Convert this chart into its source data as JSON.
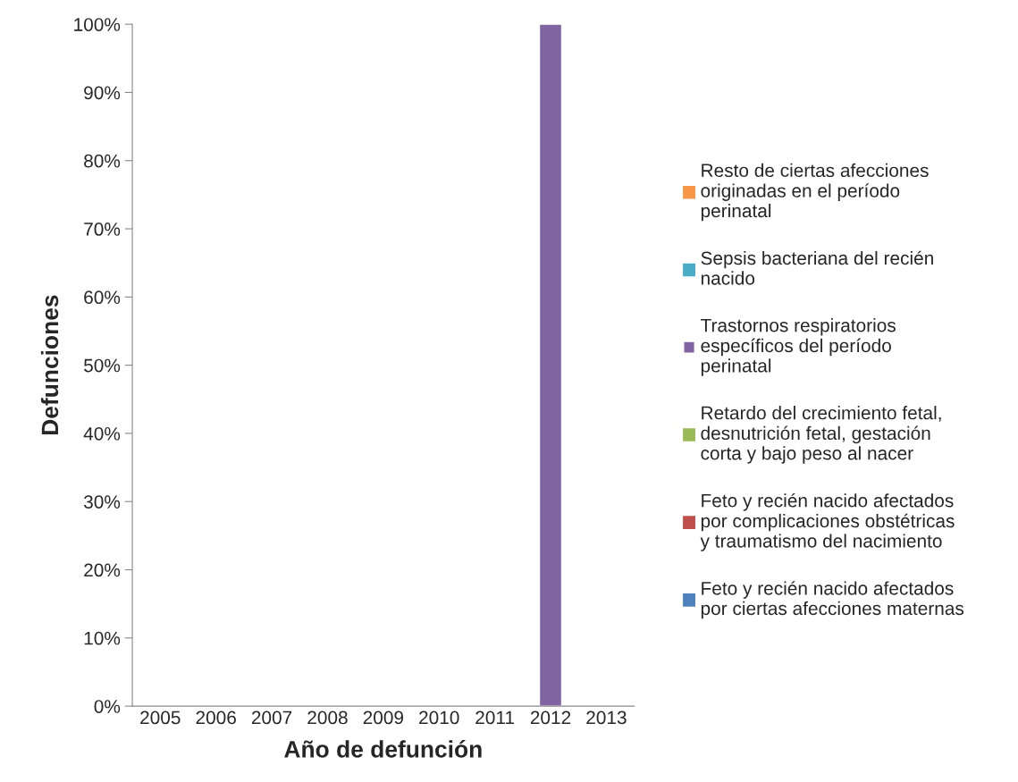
{
  "chart_data": {
    "type": "bar",
    "stacked": true,
    "xlabel": "Año de defunción",
    "ylabel": "Defunciones",
    "categories": [
      "2005",
      "2006",
      "2007",
      "2008",
      "2009",
      "2010",
      "2011",
      "2012",
      "2013"
    ],
    "series": [
      {
        "name": "Feto y recién nacido afectados por ciertas afecciones maternas",
        "color": "#4f81bd",
        "values": [
          null,
          null,
          null,
          null,
          null,
          null,
          null,
          null,
          null
        ]
      },
      {
        "name": "Feto y recién nacido afectados por complicaciones obstétricas y traumatismo del nacimiento",
        "color": "#c0504d",
        "values": [
          null,
          null,
          null,
          null,
          null,
          null,
          null,
          null,
          null
        ]
      },
      {
        "name": "Retardo del crecimiento fetal, desnutrición fetal, gestación corta y bajo peso al nacer",
        "color": "#9bbb59",
        "values": [
          null,
          null,
          null,
          null,
          null,
          null,
          null,
          null,
          null
        ]
      },
      {
        "name": "Trastornos respiratorios específicos del período perinatal",
        "color": "#8064a2",
        "values": [
          null,
          null,
          null,
          null,
          null,
          null,
          null,
          100,
          null
        ]
      },
      {
        "name": "Sepsis bacteriana del recién nacido",
        "color": "#4bacc6",
        "values": [
          null,
          null,
          null,
          null,
          null,
          null,
          null,
          null,
          null
        ]
      },
      {
        "name": "Resto de ciertas afecciones originadas en el período perinatal",
        "color": "#f79646",
        "values": [
          null,
          null,
          null,
          null,
          null,
          null,
          null,
          null,
          null
        ]
      }
    ],
    "ylim": [
      0,
      100
    ],
    "yticks": [
      {
        "value": 0,
        "label": "0%"
      },
      {
        "value": 10,
        "label": "10%"
      },
      {
        "value": 20,
        "label": "20%"
      },
      {
        "value": 30,
        "label": "30%"
      },
      {
        "value": 40,
        "label": "40%"
      },
      {
        "value": 50,
        "label": "50%"
      },
      {
        "value": 60,
        "label": "60%"
      },
      {
        "value": 70,
        "label": "70%"
      },
      {
        "value": 80,
        "label": "80%"
      },
      {
        "value": 90,
        "label": "90%"
      },
      {
        "value": 100,
        "label": "100%"
      }
    ],
    "grid": false,
    "legend": "right"
  }
}
